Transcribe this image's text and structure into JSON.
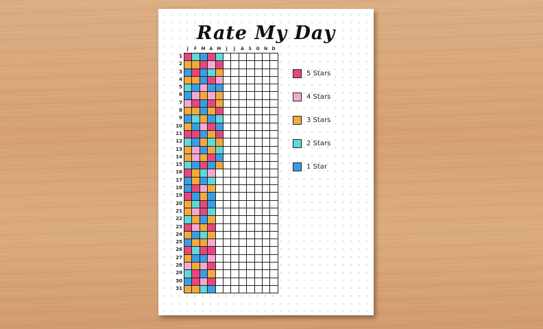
{
  "title": "Rate My Day",
  "months": [
    "J",
    "F",
    "M",
    "A",
    "M",
    "J",
    "J",
    "A",
    "S",
    "O",
    "N",
    "D"
  ],
  "colors": {
    "5": "#e8467c",
    "4": "#f5a9d2",
    "3": "#f4a93c",
    "2": "#5fd9d9",
    "1": "#3a9de6"
  },
  "legend": [
    {
      "label": "5 Stars",
      "rating": 5
    },
    {
      "label": "4 Stars",
      "rating": 4
    },
    {
      "label": "3 Stars",
      "rating": 3
    },
    {
      "label": "2 Stars",
      "rating": 2
    },
    {
      "label": "1 Star",
      "rating": 1
    }
  ],
  "ratings": [
    [
      5,
      2,
      1,
      5,
      2
    ],
    [
      3,
      3,
      5,
      4,
      5
    ],
    [
      1,
      5,
      1,
      2,
      3
    ],
    [
      3,
      3,
      1,
      5,
      4
    ],
    [
      2,
      1,
      4,
      1,
      1
    ],
    [
      1,
      4,
      3,
      4,
      3
    ],
    [
      4,
      5,
      1,
      5,
      3
    ],
    [
      3,
      3,
      1,
      3,
      5
    ],
    [
      1,
      2,
      3,
      1,
      2
    ],
    [
      3,
      1,
      4,
      5,
      1
    ],
    [
      5,
      5,
      1,
      3,
      5
    ],
    [
      2,
      1,
      3,
      2,
      3
    ],
    [
      3,
      4,
      1,
      3,
      2
    ],
    [
      3,
      4,
      3,
      5,
      1
    ],
    [
      2,
      1,
      5,
      1,
      3
    ],
    [
      5,
      3,
      2,
      4
    ],
    [
      1,
      3,
      1,
      2
    ],
    [
      1,
      5,
      4,
      3
    ],
    [
      5,
      1,
      3,
      1
    ],
    [
      3,
      2,
      5,
      1
    ],
    [
      3,
      4,
      5,
      2
    ],
    [
      2,
      3,
      1,
      3
    ],
    [
      5,
      4,
      3,
      5
    ],
    [
      3,
      1,
      2,
      3
    ],
    [
      1,
      3,
      3,
      4
    ],
    [
      5,
      2,
      5,
      5
    ],
    [
      3,
      1,
      1,
      4
    ],
    [
      4,
      3,
      4,
      5
    ],
    [
      2,
      5,
      1,
      3
    ],
    [
      1,
      5,
      4,
      5
    ],
    [
      3,
      3,
      2,
      1
    ]
  ]
}
